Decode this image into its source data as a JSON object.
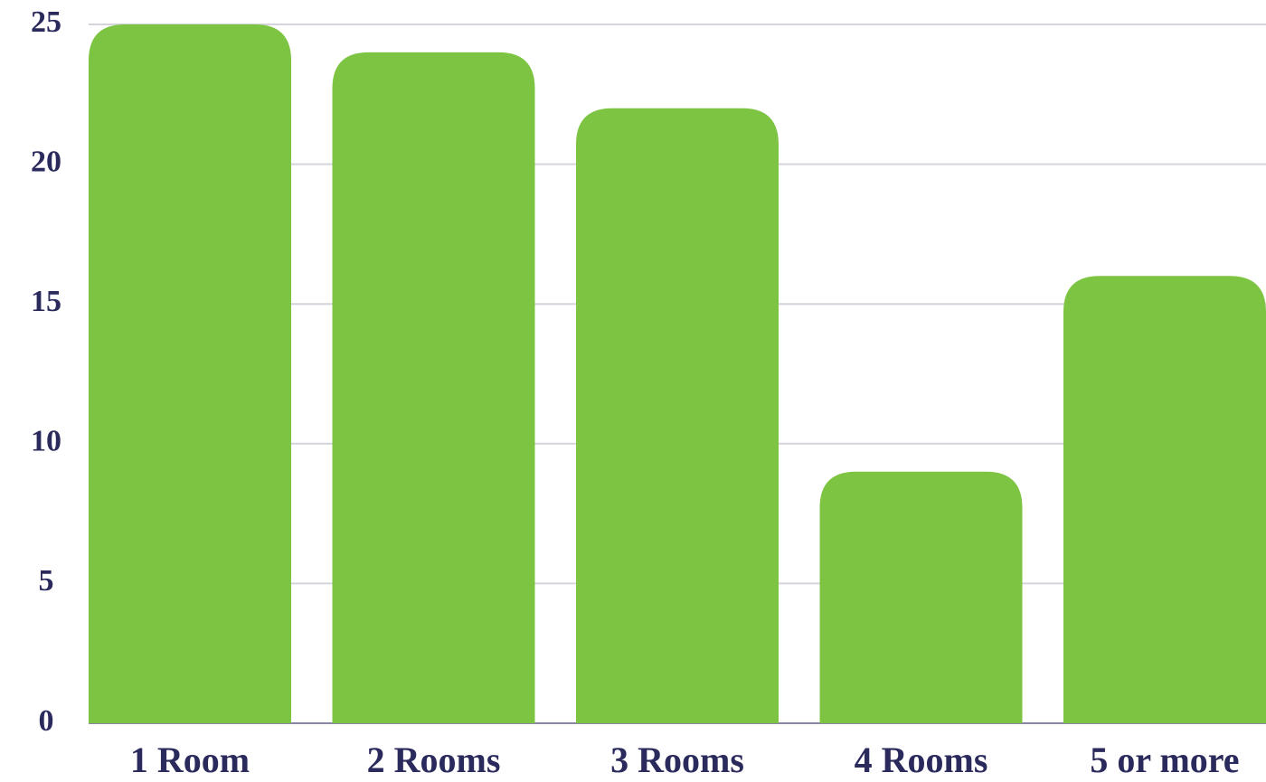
{
  "chart_data": {
    "type": "bar",
    "categories": [
      "1 Room",
      "2 Rooms",
      "3 Rooms",
      "4 Rooms",
      "5 or more"
    ],
    "values": [
      25,
      24,
      22,
      9,
      16
    ],
    "color": "#7dc443",
    "ylim": [
      0,
      25
    ],
    "yticks": [
      0,
      5,
      10,
      15,
      20,
      25
    ],
    "grid": true
  }
}
